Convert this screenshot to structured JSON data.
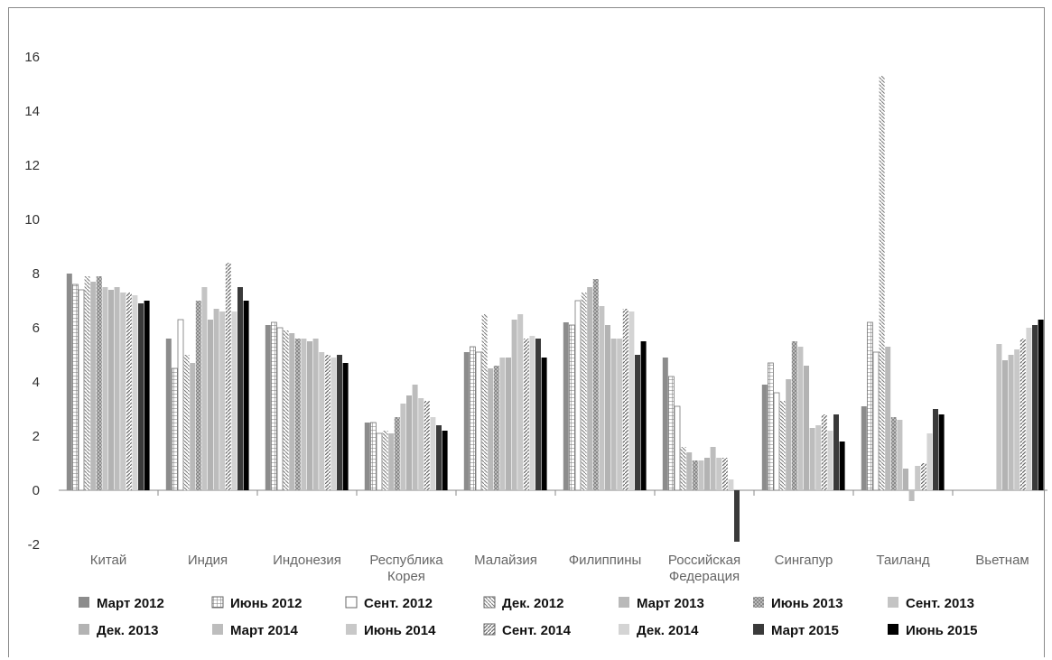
{
  "chart_data": {
    "type": "bar",
    "title": "",
    "xlabel": "",
    "ylabel": "",
    "ylim": [
      -2,
      16
    ],
    "yticks": [
      -2,
      0,
      2,
      4,
      6,
      8,
      10,
      12,
      14,
      16
    ],
    "grid": false,
    "legend_position": "bottom",
    "categories": [
      [
        "Китай"
      ],
      [
        "Индия"
      ],
      [
        "Индонезия"
      ],
      [
        "Республика",
        "Корея"
      ],
      [
        "Малайзия"
      ],
      [
        "Филиппины"
      ],
      [
        "Российская",
        "Федерация"
      ],
      [
        "Сингапур"
      ],
      [
        "Таиланд"
      ],
      [
        "Вьетнам"
      ]
    ],
    "series": [
      {
        "name": "Март 2012",
        "color": "#8c8c8c",
        "pattern": "solid",
        "values": [
          8.0,
          5.6,
          6.1,
          2.5,
          5.1,
          6.2,
          4.9,
          3.9,
          3.1,
          null
        ]
      },
      {
        "name": "Июнь 2012",
        "color": "#a9a9a9",
        "pattern": "grid",
        "values": [
          7.6,
          4.5,
          6.2,
          2.5,
          5.3,
          6.1,
          4.2,
          4.7,
          6.2,
          null
        ]
      },
      {
        "name": "Сент. 2012",
        "color": "#ffffff",
        "pattern": "outline",
        "values": [
          7.4,
          6.3,
          6.0,
          2.1,
          5.1,
          7.0,
          3.1,
          3.6,
          5.1,
          null
        ]
      },
      {
        "name": "Дек. 2012",
        "color": "#b0b0b0",
        "pattern": "diag",
        "values": [
          7.9,
          5.0,
          5.9,
          2.2,
          6.5,
          7.3,
          1.6,
          3.3,
          15.3,
          null
        ]
      },
      {
        "name": "Март 2013",
        "color": "#b9b9b9",
        "pattern": "solid",
        "values": [
          7.7,
          4.7,
          5.8,
          2.1,
          4.5,
          7.5,
          1.4,
          4.1,
          5.3,
          null
        ]
      },
      {
        "name": "Июнь 2013",
        "color": "#a5a5a5",
        "pattern": "check",
        "values": [
          7.9,
          7.0,
          5.6,
          2.7,
          4.6,
          7.8,
          1.1,
          5.5,
          2.7,
          null
        ]
      },
      {
        "name": "Сент. 2013",
        "color": "#c4c4c4",
        "pattern": "solid",
        "values": [
          7.5,
          7.5,
          5.6,
          3.2,
          4.9,
          6.8,
          1.1,
          5.3,
          2.6,
          5.4
        ]
      },
      {
        "name": "Дек. 2013",
        "color": "#b3b3b3",
        "pattern": "solid",
        "values": [
          7.4,
          6.3,
          5.5,
          3.5,
          4.9,
          6.1,
          1.2,
          4.6,
          0.8,
          4.8
        ]
      },
      {
        "name": "Март 2014",
        "color": "#bdbdbd",
        "pattern": "solid",
        "values": [
          7.5,
          6.7,
          5.6,
          3.9,
          6.3,
          5.6,
          1.6,
          2.3,
          -0.4,
          5.0
        ]
      },
      {
        "name": "Июнь 2014",
        "color": "#c8c8c8",
        "pattern": "solid",
        "values": [
          7.3,
          6.6,
          5.1,
          3.4,
          6.5,
          5.6,
          1.2,
          2.4,
          0.9,
          5.2
        ]
      },
      {
        "name": "Сент. 2014",
        "color": "#b0b0b0",
        "pattern": "diag2",
        "values": [
          7.3,
          8.4,
          5.0,
          3.3,
          5.6,
          6.7,
          1.2,
          2.8,
          1.0,
          5.6
        ]
      },
      {
        "name": "Дек. 2014",
        "color": "#d4d4d4",
        "pattern": "solid",
        "values": [
          7.2,
          6.6,
          4.9,
          2.7,
          5.7,
          6.6,
          0.4,
          2.2,
          2.1,
          6.0
        ]
      },
      {
        "name": "Март 2015",
        "color": "#3a3a3a",
        "pattern": "solid",
        "values": [
          6.9,
          7.5,
          5.0,
          2.4,
          5.6,
          5.0,
          -1.9,
          2.8,
          3.0,
          6.1
        ]
      },
      {
        "name": "Июнь 2015",
        "color": "#000000",
        "pattern": "solid",
        "values": [
          7.0,
          7.0,
          4.7,
          2.2,
          4.9,
          5.5,
          null,
          1.8,
          2.8,
          6.3
        ]
      }
    ]
  }
}
